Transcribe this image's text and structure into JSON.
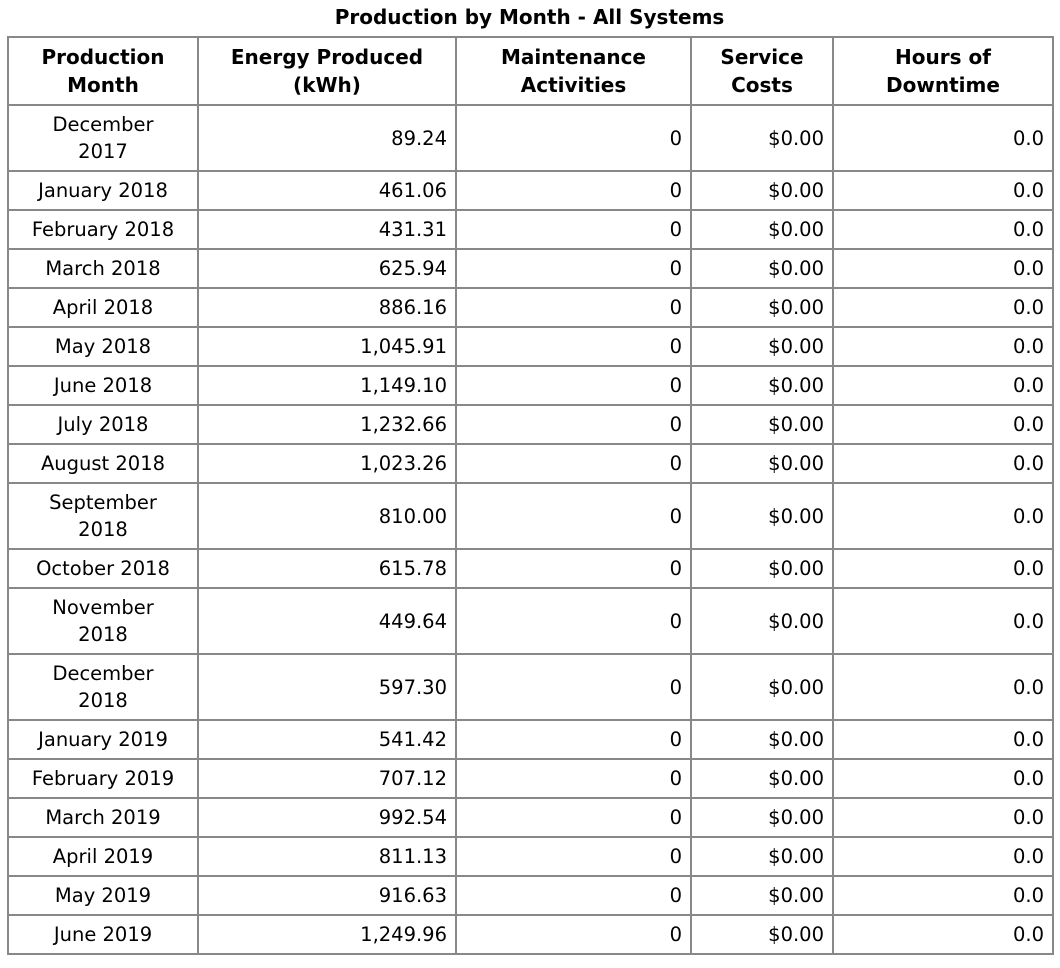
{
  "title": "Production by Month - All Systems",
  "colors": {
    "border": "#888888",
    "text": "#000000",
    "background": "#ffffff"
  },
  "table": {
    "columns": [
      {
        "id": "month",
        "label": "Production\nMonth"
      },
      {
        "id": "energy",
        "label": "Energy Produced\n(kWh)"
      },
      {
        "id": "maintenance",
        "label": "Maintenance\nActivities"
      },
      {
        "id": "service",
        "label": "Service\nCosts"
      },
      {
        "id": "downtime",
        "label": "Hours of\nDowntime"
      }
    ],
    "rows": [
      [
        "December\n2017",
        "89.24",
        "0",
        "$0.00",
        "0.0"
      ],
      [
        "January 2018",
        "461.06",
        "0",
        "$0.00",
        "0.0"
      ],
      [
        "February 2018",
        "431.31",
        "0",
        "$0.00",
        "0.0"
      ],
      [
        "March 2018",
        "625.94",
        "0",
        "$0.00",
        "0.0"
      ],
      [
        "April 2018",
        "886.16",
        "0",
        "$0.00",
        "0.0"
      ],
      [
        "May 2018",
        "1,045.91",
        "0",
        "$0.00",
        "0.0"
      ],
      [
        "June 2018",
        "1,149.10",
        "0",
        "$0.00",
        "0.0"
      ],
      [
        "July 2018",
        "1,232.66",
        "0",
        "$0.00",
        "0.0"
      ],
      [
        "August 2018",
        "1,023.26",
        "0",
        "$0.00",
        "0.0"
      ],
      [
        "September\n2018",
        "810.00",
        "0",
        "$0.00",
        "0.0"
      ],
      [
        "October 2018",
        "615.78",
        "0",
        "$0.00",
        "0.0"
      ],
      [
        "November\n2018",
        "449.64",
        "0",
        "$0.00",
        "0.0"
      ],
      [
        "December\n2018",
        "597.30",
        "0",
        "$0.00",
        "0.0"
      ],
      [
        "January 2019",
        "541.42",
        "0",
        "$0.00",
        "0.0"
      ],
      [
        "February 2019",
        "707.12",
        "0",
        "$0.00",
        "0.0"
      ],
      [
        "March 2019",
        "992.54",
        "0",
        "$0.00",
        "0.0"
      ],
      [
        "April 2019",
        "811.13",
        "0",
        "$0.00",
        "0.0"
      ],
      [
        "May 2019",
        "916.63",
        "0",
        "$0.00",
        "0.0"
      ],
      [
        "June 2019",
        "1,249.96",
        "0",
        "$0.00",
        "0.0"
      ]
    ]
  }
}
